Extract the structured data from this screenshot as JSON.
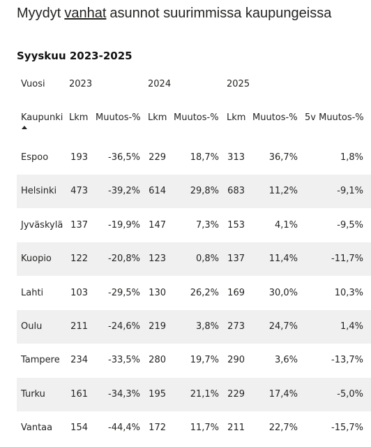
{
  "header": {
    "title": [
      "Myydyt",
      "vanhat",
      "asunnot suurimmissa kaupungeissa"
    ],
    "subtitle": "Syyskuu 2023-2025"
  },
  "table": {
    "year_row": [
      "Vuosi",
      "2023",
      "2024",
      "2025"
    ],
    "columns": [
      "Kaupunki",
      "Lkm",
      "Muutos-%",
      "Lkm",
      "Muutos-%",
      "Lkm",
      "Muutos-%",
      "5v Muutos-%"
    ],
    "rows": [
      [
        "Espoo",
        "193",
        "-36,5%",
        "229",
        "18,7%",
        "313",
        "36,7%",
        "1,8%"
      ],
      [
        "Helsinki",
        "473",
        "-39,2%",
        "614",
        "29,8%",
        "683",
        "11,2%",
        "-9,1%"
      ],
      [
        "Jyväskylä",
        "137",
        "-19,9%",
        "147",
        "7,3%",
        "153",
        "4,1%",
        "-9,5%"
      ],
      [
        "Kuopio",
        "122",
        "-20,8%",
        "123",
        "0,8%",
        "137",
        "11,4%",
        "-11,7%"
      ],
      [
        "Lahti",
        "103",
        "-29,5%",
        "130",
        "26,2%",
        "169",
        "30,0%",
        "10,3%"
      ],
      [
        "Oulu",
        "211",
        "-24,6%",
        "219",
        "3,8%",
        "273",
        "24,7%",
        "1,4%"
      ],
      [
        "Tampere",
        "234",
        "-33,5%",
        "280",
        "19,7%",
        "290",
        "3,6%",
        "-13,7%"
      ],
      [
        "Turku",
        "161",
        "-34,3%",
        "195",
        "21,1%",
        "229",
        "17,4%",
        "-5,0%"
      ],
      [
        "Vantaa",
        "154",
        "-44,4%",
        "172",
        "11,7%",
        "211",
        "22,7%",
        "-15,7%"
      ]
    ]
  }
}
